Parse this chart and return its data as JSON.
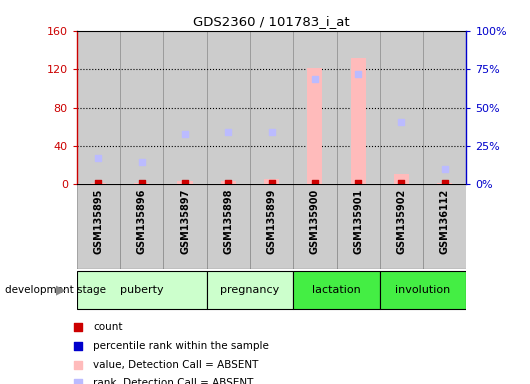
{
  "title": "GDS2360 / 101783_i_at",
  "samples": [
    "GSM135895",
    "GSM135896",
    "GSM135897",
    "GSM135898",
    "GSM135899",
    "GSM135900",
    "GSM135901",
    "GSM135902",
    "GSM136112"
  ],
  "stages": [
    {
      "label": "puberty",
      "start": 0,
      "end": 3,
      "color": "#ccffcc"
    },
    {
      "label": "pregnancy",
      "start": 3,
      "end": 5,
      "color": "#ccffcc"
    },
    {
      "label": "lactation",
      "start": 5,
      "end": 7,
      "color": "#44ee44"
    },
    {
      "label": "involution",
      "start": 7,
      "end": 9,
      "color": "#44ee44"
    }
  ],
  "bar_values": [
    1.5,
    1.5,
    3,
    3,
    6,
    121,
    132,
    11,
    1
  ],
  "bar_color": "#ffbbbb",
  "rank_values_left": [
    27,
    23,
    52,
    55,
    55,
    110,
    115,
    65,
    16
  ],
  "rank_color": "#bbbbff",
  "count_values": [
    1.2,
    1.2,
    1.2,
    1.2,
    1.2,
    1.2,
    1.2,
    1.2,
    1.2
  ],
  "count_color": "#cc0000",
  "ylim_left": [
    0,
    160
  ],
  "ylim_right": [
    0,
    100
  ],
  "yticks_left": [
    0,
    40,
    80,
    120,
    160
  ],
  "yticks_right": [
    0,
    25,
    50,
    75,
    100
  ],
  "yticklabels_left": [
    "0",
    "40",
    "80",
    "120",
    "160"
  ],
  "yticklabels_right": [
    "0%",
    "25%",
    "50%",
    "75%",
    "100%"
  ],
  "left_axis_color": "#cc0000",
  "right_axis_color": "#0000cc",
  "legend_items": [
    {
      "label": "count",
      "color": "#cc0000",
      "marker": "s"
    },
    {
      "label": "percentile rank within the sample",
      "color": "#0000cc",
      "marker": "s"
    },
    {
      "label": "value, Detection Call = ABSENT",
      "color": "#ffbbbb",
      "marker": "s"
    },
    {
      "label": "rank, Detection Call = ABSENT",
      "color": "#bbbbff",
      "marker": "s"
    }
  ],
  "development_stage_label": "development stage",
  "col_bg_color": "#cccccc",
  "col_border_color": "#888888"
}
